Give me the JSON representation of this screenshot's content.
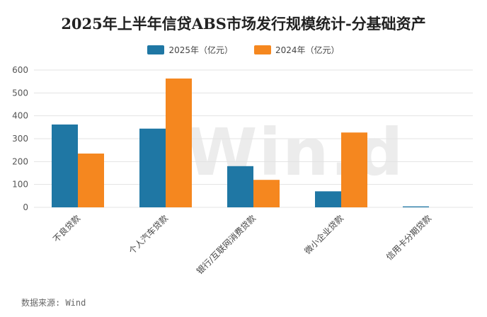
{
  "colors": {
    "series_2025": "#1f77a4",
    "series_2024": "#f5871f",
    "grid": "#e3e3e3",
    "axis_text": "#555555"
  },
  "source": "数据来源: Wind",
  "watermark": "Win.d",
  "chart_data": {
    "type": "bar",
    "title": "2025年上半年信贷ABS市场发行规模统计-分基础资产",
    "categories": [
      "不良贷款",
      "个人汽车贷款",
      "银行/互联网消费贷款",
      "微小企业贷款",
      "信用卡分期贷款"
    ],
    "series": [
      {
        "name": "2025年（亿元）",
        "values": [
          362,
          344,
          180,
          70,
          4
        ]
      },
      {
        "name": "2024年（亿元）",
        "values": [
          235,
          563,
          120,
          327,
          0
        ]
      }
    ],
    "ylim": [
      0,
      600
    ],
    "yticks": [
      0,
      100,
      200,
      300,
      400,
      500,
      600
    ],
    "grid": true,
    "legend_position": "top-center",
    "xlabel": "",
    "ylabel": ""
  }
}
